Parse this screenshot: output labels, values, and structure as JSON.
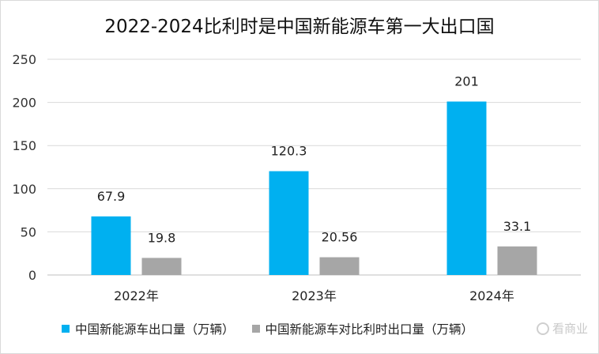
{
  "chart_data": {
    "type": "bar",
    "title": "2022-2024比利时是中国新能源车第一大出口国",
    "categories": [
      "2022年",
      "2023年",
      "2024年"
    ],
    "series": [
      {
        "name": "中国新能源车出口量（万辆）",
        "values": [
          67.9,
          120.3,
          201
        ],
        "labels": [
          "67.9",
          "120.3",
          "201"
        ],
        "color": "#00b0f0"
      },
      {
        "name": "中国新能源车对比利时出口量（万辆）",
        "values": [
          19.8,
          20.56,
          33.1
        ],
        "labels": [
          "19.8",
          "20.56",
          "33.1"
        ],
        "color": "#a6a6a6"
      }
    ],
    "ylim": [
      0,
      250
    ],
    "yticks": [
      "0",
      "50",
      "100",
      "150",
      "200",
      "250"
    ],
    "grid": true,
    "legend_position": "bottom"
  },
  "watermark": {
    "text": "看商业",
    "icon": "watermark-logo-icon"
  }
}
